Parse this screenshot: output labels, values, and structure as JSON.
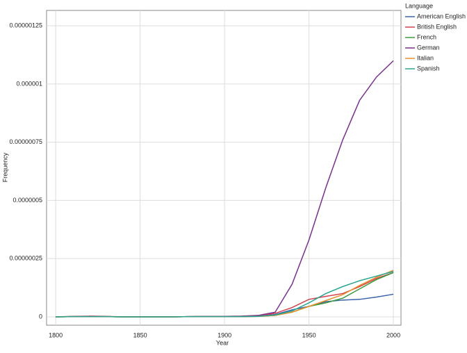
{
  "chart_data": {
    "type": "line",
    "x_label": "Year",
    "y_label": "Frequency",
    "legend_title": "Language",
    "x": [
      1800,
      1810,
      1820,
      1830,
      1840,
      1850,
      1860,
      1870,
      1880,
      1890,
      1900,
      1910,
      1920,
      1930,
      1940,
      1950,
      1960,
      1970,
      1980,
      1990,
      2000
    ],
    "series": [
      {
        "name": "American English",
        "color": "#3a62ad",
        "values": [
          0,
          1e-09,
          2e-09,
          1e-09,
          0,
          0,
          0,
          0,
          1e-09,
          2e-09,
          1e-09,
          1e-09,
          3e-09,
          1e-08,
          3e-08,
          4.5e-08,
          6.5e-08,
          7.2e-08,
          7.5e-08,
          8.5e-08,
          9.7e-08
        ]
      },
      {
        "name": "British English",
        "color": "#d2404a",
        "values": [
          0,
          2e-09,
          3e-09,
          2e-09,
          0,
          0,
          0,
          0,
          1e-09,
          2e-09,
          1e-09,
          2e-09,
          5e-09,
          1.5e-08,
          4e-08,
          7.5e-08,
          8.8e-08,
          1e-07,
          1.3e-07,
          1.65e-07,
          1.9e-07
        ]
      },
      {
        "name": "French",
        "color": "#3d9a3d",
        "values": [
          0,
          1e-09,
          2e-09,
          1e-09,
          0,
          0,
          0,
          0,
          1e-09,
          1e-09,
          1e-09,
          1e-09,
          2e-09,
          6e-09,
          2e-08,
          4.5e-08,
          6e-08,
          8e-08,
          1.2e-07,
          1.6e-07,
          1.9e-07
        ]
      },
      {
        "name": "German",
        "color": "#7b2f8e",
        "values": [
          0,
          1e-09,
          2e-09,
          1e-09,
          0,
          0,
          0,
          0,
          1e-09,
          2e-09,
          2e-09,
          3e-09,
          6e-09,
          2e-08,
          1.4e-07,
          3.3e-07,
          5.55e-07,
          7.6e-07,
          9.3e-07,
          1.03e-06,
          1.1e-06
        ]
      },
      {
        "name": "Italian",
        "color": "#e8902a",
        "values": [
          0,
          1e-09,
          1e-09,
          1e-09,
          0,
          0,
          0,
          0,
          1e-09,
          1e-09,
          1e-09,
          1e-09,
          2e-09,
          6e-09,
          2e-08,
          4.5e-08,
          7e-08,
          9.5e-08,
          1.35e-07,
          1.7e-07,
          2e-07
        ]
      },
      {
        "name": "Spanish",
        "color": "#2aa58f",
        "values": [
          0,
          1e-09,
          1e-09,
          1e-09,
          0,
          0,
          0,
          0,
          1e-09,
          1e-09,
          1e-09,
          1e-09,
          2e-09,
          8e-09,
          2.5e-08,
          6e-08,
          1e-07,
          1.3e-07,
          1.55e-07,
          1.75e-07,
          1.95e-07
        ]
      }
    ],
    "xlim": [
      1794.6,
      2004.5
    ],
    "ylim": [
      -3.6e-08,
      1.316e-06
    ],
    "xticks": [
      1800,
      1850,
      1900,
      1950,
      2000
    ],
    "yticks": [
      0,
      {
        "value": 2.5e-07,
        "label": "0.00000025"
      },
      {
        "value": 5e-07,
        "label": "0.0000005"
      },
      {
        "value": 7.5e-07,
        "label": "0.00000075"
      },
      {
        "value": 1e-06,
        "label": "0.000001"
      },
      {
        "value": 1.25e-06,
        "label": "0.00000125"
      }
    ],
    "grid": true,
    "legend": "right"
  }
}
